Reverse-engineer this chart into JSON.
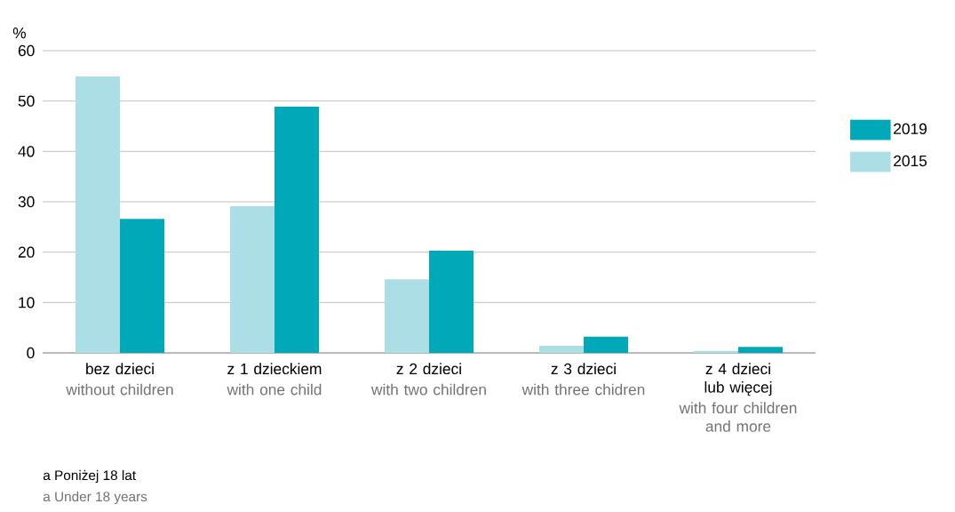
{
  "chart_data": {
    "type": "bar",
    "ylabel": "%",
    "categories": [
      "bez dzieci",
      "z 1 dzieckiem",
      "z 2 dzieci",
      "z 3 dzieci",
      "z 4 dzieci lub więcej"
    ],
    "series": [
      {
        "name": "2015",
        "color": "#acdfe5",
        "values": [
          54.9,
          29.1,
          14.6,
          1.4,
          0.4
        ]
      },
      {
        "name": "2019",
        "color": "#00a8b8",
        "values": [
          26.6,
          48.9,
          20.3,
          3.2,
          1.2
        ]
      }
    ],
    "ylim": [
      0,
      60
    ],
    "yticks": [
      0,
      10,
      20,
      30,
      40,
      50,
      60
    ],
    "grid": "y",
    "legend": "right",
    "annotations": [
      "without children",
      "with one child",
      "with two children",
      "with three chidren",
      "with four children and more",
      "a Poniżej 18 lat",
      "a Under 18 years"
    ]
  }
}
